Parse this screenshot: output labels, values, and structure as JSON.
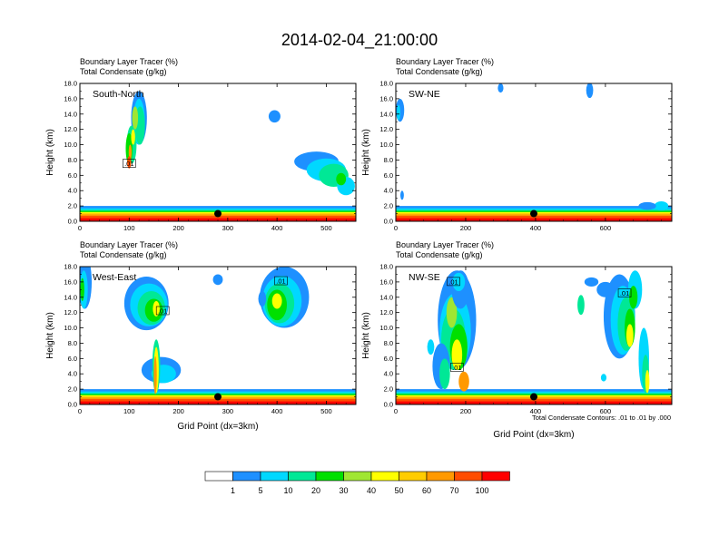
{
  "figure": {
    "title": "2014-02-04_21:00:00",
    "contour_note": "Total Condensate Contours: .01 to .01 by .000",
    "colors": {
      "c0": "#ffffff",
      "c1": "#1e90ff",
      "c2": "#00d8ff",
      "c3": "#00e896",
      "c4": "#00e000",
      "c5": "#a0e632",
      "c6": "#ffff00",
      "c7": "#ffcc00",
      "c8": "#ff9900",
      "c9": "#ff4d00",
      "c10": "#ff0000"
    }
  },
  "chart_data": [
    {
      "type": "heatmap",
      "panel": "South-North",
      "title_line1": "Boundary Layer Tracer   (%)",
      "title_line2": "Total Condensate   (g/kg)",
      "ylabel": "Height (km)",
      "xlabel": "",
      "xlim": [
        0,
        560
      ],
      "ylim": [
        0,
        18
      ],
      "xticks": [
        0,
        100,
        200,
        300,
        400,
        500
      ],
      "yticks": [
        "0.0",
        "2.0",
        "4.0",
        "6.0",
        "8.0",
        "10.0",
        "12.0",
        "14.0",
        "16.0",
        "18.0"
      ],
      "marker": {
        "x": 280,
        "y": 1.0
      },
      "contour_labels": [
        {
          "text": ".01",
          "x": 100,
          "y": 7.5
        }
      ]
    },
    {
      "type": "heatmap",
      "panel": "SW-NE",
      "title_line1": "Boundary Layer Tracer   (%)",
      "title_line2": "Total Condensate   (g/kg)",
      "ylabel": "Height (km)",
      "xlabel": "",
      "xlim": [
        0,
        790
      ],
      "ylim": [
        0,
        18
      ],
      "xticks": [
        0,
        200,
        400,
        600
      ],
      "yticks": [
        "0.0",
        "2.0",
        "4.0",
        "6.0",
        "8.0",
        "10.0",
        "12.0",
        "14.0",
        "16.0",
        "18.0"
      ],
      "marker": {
        "x": 395,
        "y": 1.0
      },
      "contour_labels": []
    },
    {
      "type": "heatmap",
      "panel": "West-East",
      "title_line1": "Boundary Layer Tracer   (%)",
      "title_line2": "Total Condensate   (g/kg)",
      "ylabel": "Height (km)",
      "xlabel": "Grid Point (dx=3km)",
      "xlim": [
        0,
        560
      ],
      "ylim": [
        0,
        18
      ],
      "xticks": [
        0,
        100,
        200,
        300,
        400,
        500
      ],
      "yticks": [
        "0.0",
        "2.0",
        "4.0",
        "6.0",
        "8.0",
        "10.0",
        "12.0",
        "14.0",
        "16.0",
        "18.0"
      ],
      "marker": {
        "x": 280,
        "y": 1.0
      },
      "contour_labels": [
        {
          "text": ".01",
          "x": 168,
          "y": 12.2
        },
        {
          "text": ".01",
          "x": 408,
          "y": 16.1
        }
      ]
    },
    {
      "type": "heatmap",
      "panel": "NW-SE",
      "title_line1": "Boundary Layer Tracer   (%)",
      "title_line2": "Total Condensate   (g/kg)",
      "ylabel": "Height (km)",
      "xlabel": "Grid Point (dx=3km)",
      "xlim": [
        0,
        790
      ],
      "ylim": [
        0,
        18
      ],
      "xticks": [
        0,
        200,
        400,
        600
      ],
      "yticks": [
        "0.0",
        "2.0",
        "4.0",
        "6.0",
        "8.0",
        "10.0",
        "12.0",
        "14.0",
        "16.0",
        "18.0"
      ],
      "marker": {
        "x": 395,
        "y": 1.0
      },
      "contour_labels": [
        {
          "text": ".01",
          "x": 165,
          "y": 16.0
        },
        {
          "text": ".01",
          "x": 175,
          "y": 4.8
        },
        {
          "text": ".01",
          "x": 655,
          "y": 14.5
        }
      ]
    }
  ],
  "colorbar": {
    "labels": [
      "1",
      "5",
      "10",
      "20",
      "30",
      "40",
      "50",
      "60",
      "70",
      "100"
    ],
    "colors": [
      "#ffffff",
      "#1e90ff",
      "#00d8ff",
      "#00e896",
      "#00e000",
      "#a0e632",
      "#ffff00",
      "#ffcc00",
      "#ff9900",
      "#ff4d00",
      "#ff0000"
    ]
  }
}
